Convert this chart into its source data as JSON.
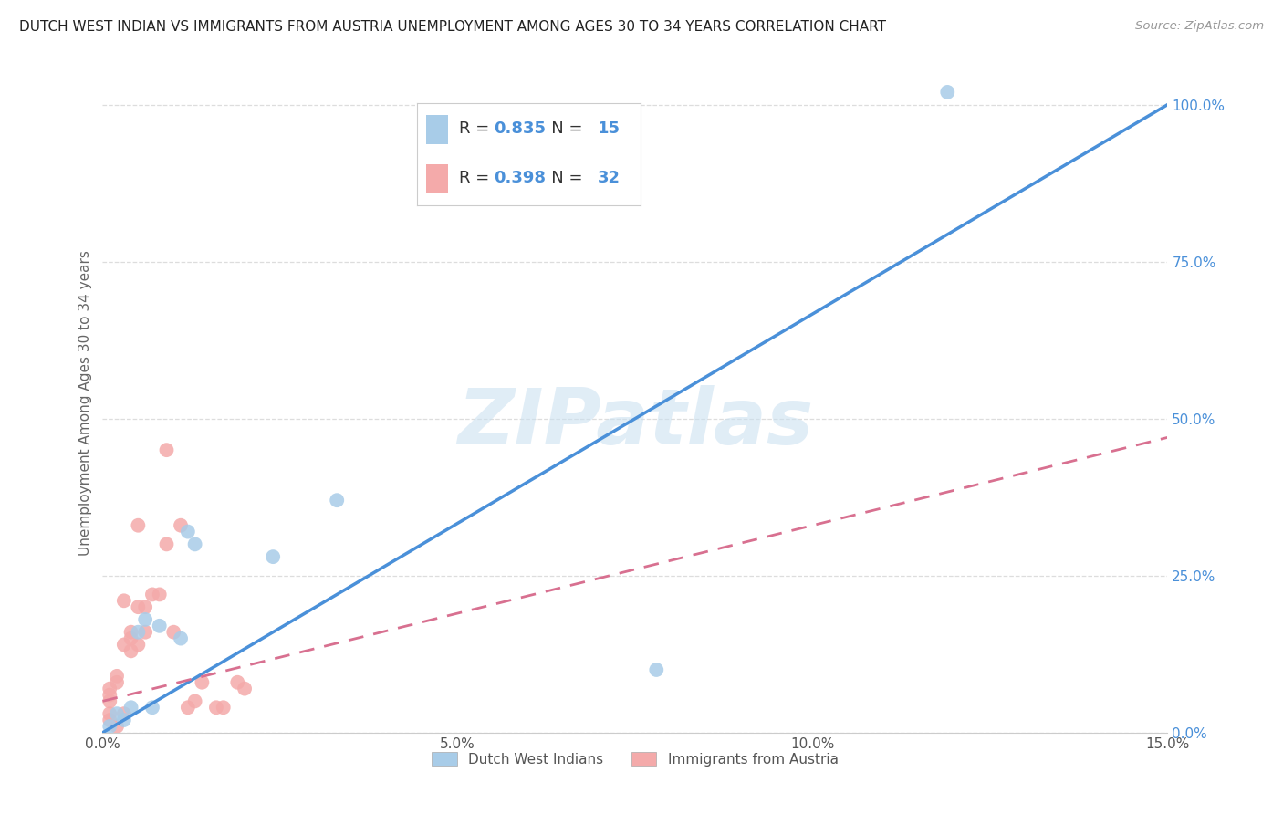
{
  "title": "DUTCH WEST INDIAN VS IMMIGRANTS FROM AUSTRIA UNEMPLOYMENT AMONG AGES 30 TO 34 YEARS CORRELATION CHART",
  "source": "Source: ZipAtlas.com",
  "ylabel": "Unemployment Among Ages 30 to 34 years",
  "xmin": 0.0,
  "xmax": 0.15,
  "ymin": 0.0,
  "ymax": 1.05,
  "watermark": "ZIPatlas",
  "blue_color": "#a8cce8",
  "pink_color": "#f4aaaa",
  "blue_line_color": "#4a90d9",
  "pink_line_color": "#d87090",
  "blue_scatter": {
    "x": [
      0.001,
      0.002,
      0.003,
      0.004,
      0.005,
      0.006,
      0.007,
      0.008,
      0.011,
      0.012,
      0.013,
      0.024,
      0.033,
      0.078,
      0.119
    ],
    "y": [
      0.01,
      0.03,
      0.02,
      0.04,
      0.16,
      0.18,
      0.04,
      0.17,
      0.15,
      0.32,
      0.3,
      0.28,
      0.37,
      0.1,
      1.02
    ]
  },
  "pink_scatter": {
    "x": [
      0.001,
      0.001,
      0.001,
      0.001,
      0.001,
      0.002,
      0.002,
      0.002,
      0.003,
      0.003,
      0.003,
      0.004,
      0.004,
      0.004,
      0.005,
      0.005,
      0.005,
      0.006,
      0.006,
      0.007,
      0.008,
      0.009,
      0.009,
      0.01,
      0.011,
      0.012,
      0.013,
      0.014,
      0.016,
      0.017,
      0.019,
      0.02
    ],
    "y": [
      0.02,
      0.03,
      0.05,
      0.06,
      0.07,
      0.01,
      0.08,
      0.09,
      0.03,
      0.14,
      0.21,
      0.13,
      0.15,
      0.16,
      0.14,
      0.2,
      0.33,
      0.16,
      0.2,
      0.22,
      0.22,
      0.3,
      0.45,
      0.16,
      0.33,
      0.04,
      0.05,
      0.08,
      0.04,
      0.04,
      0.08,
      0.07
    ]
  },
  "blue_R": 0.835,
  "blue_N": 15,
  "pink_R": 0.398,
  "pink_N": 32,
  "blue_line": {
    "x0": 0.0,
    "y0": 0.0,
    "x1": 0.15,
    "y1": 1.0
  },
  "pink_line": {
    "x0": 0.0,
    "y0": 0.05,
    "x1": 0.15,
    "y1": 0.47
  },
  "xticks": [
    0.0,
    0.05,
    0.1,
    0.15
  ],
  "xtick_labels": [
    "0.0%",
    "5.0%",
    "10.0%",
    "15.0%"
  ],
  "yticks_right": [
    0.0,
    0.25,
    0.5,
    0.75,
    1.0
  ],
  "ytick_labels_right": [
    "0.0%",
    "25.0%",
    "50.0%",
    "75.0%",
    "100.0%"
  ],
  "background_color": "#ffffff",
  "title_fontsize": 11,
  "axis_color": "#cccccc",
  "grid_color": "#dddddd"
}
